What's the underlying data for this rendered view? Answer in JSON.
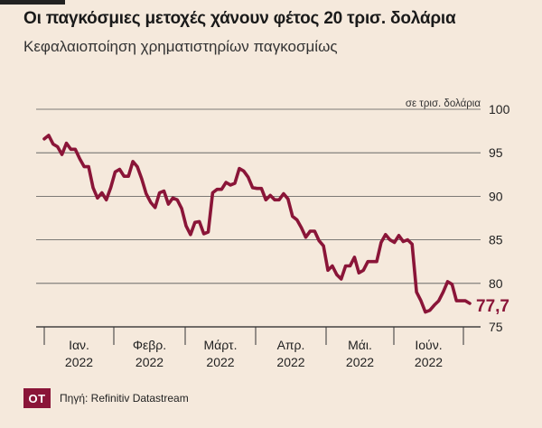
{
  "header": {
    "title": "Οι παγκόσμιες μετοχές χάνουν φέτος 20 τρισ. δολάρια",
    "subtitle": "Κεφαλαιοποίηση χρηματιστηρίων παγκοσμίως"
  },
  "footer": {
    "logo_text": "OT",
    "source": "Πηγή: Refinitiv Datastream"
  },
  "colors": {
    "line": "#8a1538",
    "background": "#f5e9dc"
  },
  "chart_data": {
    "type": "line",
    "title": "Οι παγκόσμιες μετοχές χάνουν φέτος 20 τρισ. δολάρια",
    "subtitle": "Κεφαλαιοποίηση χρηματιστηρίων παγκοσμίως",
    "unit_label": "σε τρισ. δολάρια",
    "ylim": [
      75,
      100
    ],
    "y_ticks": [
      75,
      80,
      85,
      90,
      95,
      100
    ],
    "y_axis_side": "right",
    "grid": "horizontal",
    "x_labels": [
      [
        "Ιαν.",
        "2022"
      ],
      [
        "Φεβρ.",
        "2022"
      ],
      [
        "Μάρτ.",
        "2022"
      ],
      [
        "Απρ.",
        "2022"
      ],
      [
        "Μάι.",
        "2022"
      ],
      [
        "Ιούν.",
        "2022"
      ]
    ],
    "end_label": "77,7",
    "series": [
      {
        "values": [
          96.6,
          97.0,
          96.0,
          95.7,
          94.8,
          96.1,
          95.4,
          95.4,
          94.3,
          93.4,
          93.4,
          91.0,
          89.8,
          90.4,
          89.6,
          91.0,
          92.8,
          93.1,
          92.3,
          92.3,
          94.0,
          93.4,
          92.0,
          90.3,
          89.3,
          88.7,
          90.4,
          90.6,
          89.1,
          89.8,
          89.6,
          88.6,
          86.6,
          85.6,
          87.0,
          87.1,
          85.7,
          85.9,
          90.4,
          90.8,
          90.8,
          91.6,
          91.3,
          91.5,
          93.2,
          92.9,
          92.2,
          91.0,
          90.9,
          90.9,
          89.6,
          90.1,
          89.6,
          89.6,
          90.3,
          89.7,
          87.7,
          87.3,
          86.4,
          85.3,
          86.0,
          86.0,
          84.9,
          84.3,
          81.5,
          82.0,
          81.0,
          80.5,
          82.0,
          82.0,
          83.0,
          81.2,
          81.5,
          82.5,
          82.5,
          82.5,
          84.7,
          85.6,
          85.0,
          84.7,
          85.5,
          84.8,
          85.0,
          84.5,
          79.0,
          78.0,
          76.7,
          76.9,
          77.5,
          78.0,
          79.0,
          80.2,
          79.9,
          78.0,
          78.0,
          78.0,
          77.7
        ]
      }
    ]
  }
}
